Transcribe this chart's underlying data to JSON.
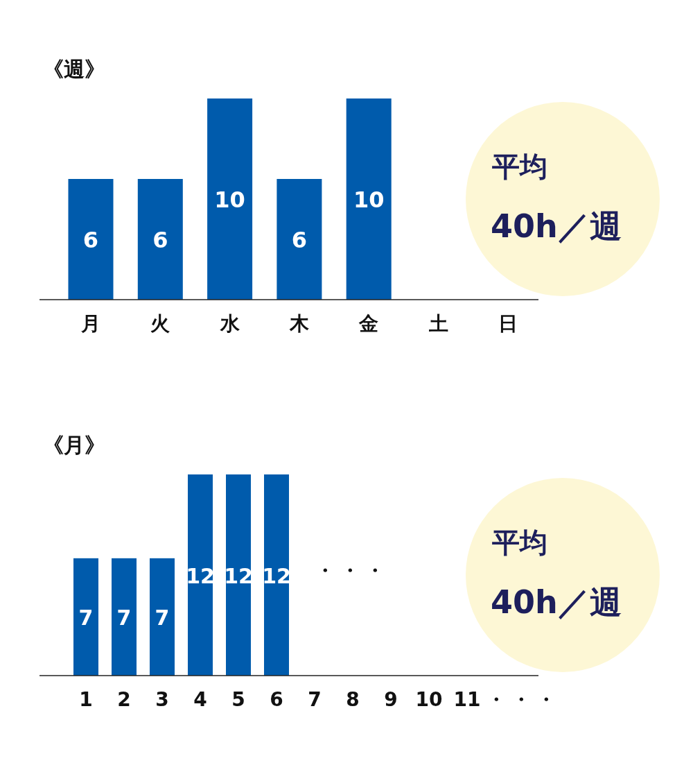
{
  "chart_data": [
    {
      "type": "bar",
      "title": "《週》",
      "categories": [
        "月",
        "火",
        "水",
        "木",
        "金",
        "土",
        "日"
      ],
      "values": [
        6,
        6,
        10,
        6,
        10,
        null,
        null
      ],
      "color": "#005bac",
      "data_labels": true,
      "annotations": [
        "平均",
        "40h／週"
      ]
    },
    {
      "type": "bar",
      "title": "《月》",
      "categories": [
        "1",
        "2",
        "3",
        "4",
        "5",
        "6",
        "7",
        "8",
        "9",
        "10",
        "11"
      ],
      "values": [
        7,
        7,
        7,
        12,
        12,
        12,
        null,
        null,
        null,
        null,
        null
      ],
      "color": "#005bac",
      "data_labels": true,
      "annotations": [
        "・・・",
        "・・・",
        "平均",
        "40h／週"
      ]
    }
  ]
}
